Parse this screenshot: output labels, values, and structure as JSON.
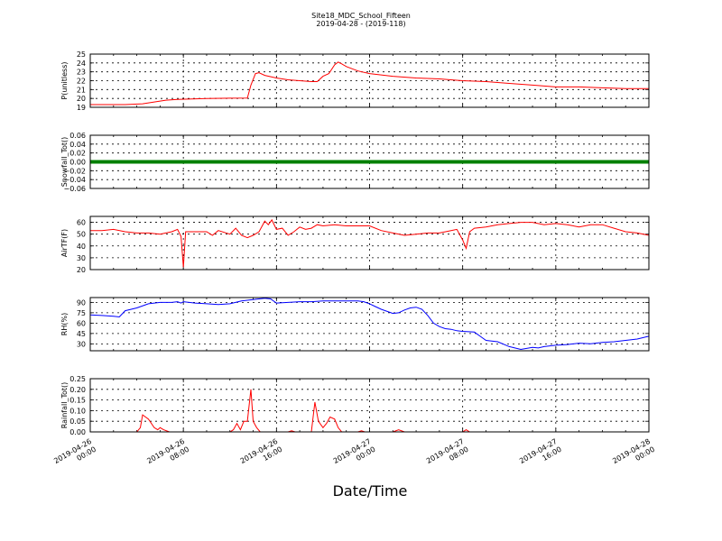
{
  "figure": {
    "title": "Site18_MDC_School_Fifteen",
    "subtitle": "2019-04-28 - (2019-118)",
    "xlabel": "Date/Time",
    "x_tick_labels": [
      [
        "2019-04-26",
        "00:00"
      ],
      [
        "2019-04-26",
        "08:00"
      ],
      [
        "2019-04-26",
        "16:00"
      ],
      [
        "2019-04-27",
        "00:00"
      ],
      [
        "2019-04-27",
        "08:00"
      ],
      [
        "2019-04-27",
        "16:00"
      ],
      [
        "2019-04-28",
        "00:00"
      ]
    ],
    "x_ticks_hours": [
      0,
      8,
      16,
      24,
      32,
      40,
      48
    ]
  },
  "chart_data": [
    {
      "type": "line",
      "ylabel": "P(unitless)",
      "ylim": [
        19,
        25
      ],
      "yticks": [
        "19",
        "20",
        "21",
        "22",
        "23",
        "24",
        "25"
      ],
      "grid": true,
      "series": [
        {
          "color": "#ff0000",
          "x": [
            0,
            3,
            4.5,
            5.5,
            6.5,
            7.5,
            10,
            13.5,
            13.8,
            14.2,
            14.5,
            15,
            16,
            17,
            18,
            19,
            19.5,
            20,
            20.5,
            21,
            21.3,
            21.6,
            22,
            23,
            24,
            26,
            28,
            30,
            32,
            34,
            36,
            38,
            40,
            42,
            44,
            46,
            48
          ],
          "y": [
            19.3,
            19.3,
            19.4,
            19.6,
            19.8,
            19.9,
            20.0,
            20.05,
            21.5,
            22.8,
            22.9,
            22.6,
            22.3,
            22.1,
            22.0,
            21.9,
            21.9,
            22.5,
            22.8,
            23.8,
            24.1,
            23.9,
            23.6,
            23.1,
            22.8,
            22.5,
            22.3,
            22.2,
            22.0,
            21.9,
            21.7,
            21.5,
            21.3,
            21.3,
            21.2,
            21.1,
            21.1
          ]
        }
      ]
    },
    {
      "type": "line",
      "ylabel": "Snowfall_Tot()",
      "ylim": [
        -0.06,
        0.06
      ],
      "yticks": [
        "−0.06",
        "−0.04",
        "−0.02",
        "0.00",
        "0.02",
        "0.04",
        "0.06"
      ],
      "grid": true,
      "series": [
        {
          "color": "#008000",
          "x": [
            0,
            48
          ],
          "y": [
            0,
            0
          ]
        }
      ]
    },
    {
      "type": "line",
      "ylabel": "AirTF(F)",
      "ylim": [
        20,
        65
      ],
      "yticks": [
        "20",
        "30",
        "40",
        "50",
        "60"
      ],
      "grid": true,
      "series": [
        {
          "color": "#ff0000",
          "x": [
            0,
            1,
            2,
            3,
            4,
            5,
            6,
            6.5,
            7,
            7.5,
            7.8,
            8,
            8.2,
            8.5,
            9,
            10,
            10.5,
            11,
            12,
            12.5,
            13,
            13.5,
            14,
            14.5,
            15,
            15.3,
            15.6,
            16,
            16.5,
            17,
            17.5,
            18,
            18.5,
            19,
            19.5,
            20,
            21,
            22,
            23,
            24,
            25,
            26,
            27,
            28,
            29,
            30,
            31,
            31.5,
            32,
            32.3,
            32.6,
            33,
            34,
            35,
            36,
            37,
            38,
            39,
            40,
            41,
            42,
            43,
            44,
            45,
            46,
            47,
            48
          ],
          "y": [
            53,
            53,
            54,
            52,
            51,
            51,
            50,
            51,
            52,
            54,
            48,
            22,
            52,
            52,
            52,
            52,
            49,
            53,
            50,
            55,
            49,
            47,
            49,
            52,
            61,
            58,
            62,
            54,
            55,
            49,
            52,
            56,
            54,
            55,
            58,
            57,
            58,
            57,
            57,
            57,
            53,
            51,
            49,
            50,
            51,
            51,
            53,
            54,
            45,
            38,
            52,
            55,
            56,
            58,
            59,
            60,
            60,
            58,
            59,
            58,
            56,
            58,
            58,
            55,
            52,
            51,
            49
          ]
        }
      ]
    },
    {
      "type": "line",
      "ylabel": "RH(%)",
      "ylim": [
        20,
        97
      ],
      "yticks": [
        "30",
        "45",
        "60",
        "75",
        "90"
      ],
      "grid": true,
      "series": [
        {
          "color": "#0000ff",
          "x": [
            0,
            1,
            2,
            2.5,
            3,
            4,
            5,
            6,
            7,
            7.5,
            7.8,
            8,
            8.5,
            9,
            10,
            11,
            12,
            13,
            14,
            15,
            15.5,
            16,
            17,
            18,
            19,
            20,
            21,
            22,
            23,
            23.5,
            24,
            24.5,
            25,
            26,
            26.5,
            27,
            27.5,
            28,
            28.5,
            29,
            29.5,
            30,
            30.5,
            31,
            31.5,
            32,
            33,
            33.5,
            34,
            35,
            36,
            37,
            38,
            38.5,
            39,
            40,
            41,
            42,
            43,
            44,
            45,
            46,
            47,
            48
          ],
          "y": [
            72,
            71,
            70,
            69,
            78,
            82,
            88,
            90,
            90,
            91,
            89,
            91,
            90,
            89,
            88,
            87,
            88,
            92,
            94,
            96,
            95,
            89,
            90,
            91,
            91,
            92,
            92,
            92,
            92,
            91,
            88,
            84,
            80,
            74,
            75,
            79,
            82,
            83,
            80,
            71,
            60,
            55,
            52,
            51,
            49,
            48,
            47,
            41,
            35,
            33,
            26,
            22,
            25,
            24,
            26,
            28,
            29,
            31,
            30,
            32,
            33,
            35,
            37,
            41
          ]
        }
      ]
    },
    {
      "type": "line",
      "ylabel": "Rainfall_Tot()",
      "ylim": [
        0,
        0.25
      ],
      "yticks": [
        "0.00",
        "0.05",
        "0.10",
        "0.15",
        "0.20",
        "0.25"
      ],
      "grid": true,
      "series": [
        {
          "color": "#ff0000",
          "x": [
            0,
            4,
            4.3,
            4.5,
            5.0,
            5.5,
            5.8,
            6.0,
            6.3,
            6.8,
            12.0,
            12.3,
            12.6,
            12.9,
            13.2,
            13.5,
            13.8,
            14.0,
            14.3,
            14.6,
            15.0,
            17.0,
            17.3,
            17.6,
            19.0,
            19.3,
            19.6,
            20.0,
            20.3,
            20.6,
            21.0,
            21.3,
            21.6,
            22.0,
            23.0,
            23.3,
            23.6,
            26.0,
            26.5,
            27.0,
            32.0,
            32.3,
            32.6,
            48
          ],
          "y": [
            0,
            0,
            0.02,
            0.08,
            0.06,
            0.02,
            0.01,
            0.02,
            0.01,
            0,
            0,
            0.01,
            0.04,
            0.01,
            0.05,
            0.05,
            0.2,
            0.05,
            0.02,
            0,
            0,
            0,
            0.005,
            0,
            0,
            0.14,
            0.05,
            0.02,
            0.04,
            0.07,
            0.06,
            0.02,
            0,
            0,
            0,
            0.005,
            0,
            0,
            0.01,
            0,
            0,
            0.01,
            0,
            0
          ]
        }
      ]
    }
  ]
}
